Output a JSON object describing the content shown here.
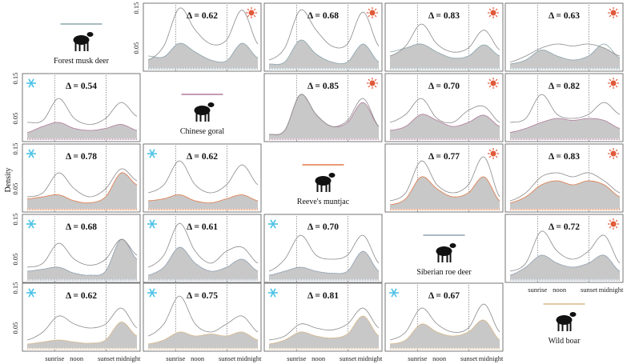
{
  "chart_data": {
    "type": "area",
    "ylabel": "Density",
    "ylim": [
      0,
      0.15
    ],
    "y_ticks": [
      0.05,
      0.15
    ],
    "y_tick_labels": [
      "0.05",
      "0.15"
    ],
    "x_ticks": [
      "sunrise",
      "noon",
      "sunset",
      "midnight"
    ],
    "species": [
      {
        "id": "musk",
        "name": "Forest musk deer",
        "icon": "musk-deer-icon",
        "line_color": "#8aa3ad"
      },
      {
        "id": "goral",
        "name": "Chinese goral",
        "icon": "goral-icon",
        "line_color": "#b07a9a"
      },
      {
        "id": "muntjac",
        "name": "Reeve's muntjac",
        "icon": "muntjac-icon",
        "line_color": "#e07a4a"
      },
      {
        "id": "roe",
        "name": "Siberian roe deer",
        "icon": "roe-deer-icon",
        "line_color": "#8f9fb1"
      },
      {
        "id": "boar",
        "name": "Wild boar",
        "icon": "boar-icon",
        "line_color": "#d9b98a"
      }
    ],
    "season_icons": {
      "sun": "sun-icon",
      "snow": "snowflake-icon"
    },
    "colors": {
      "sun": "#e05a3a",
      "snow": "#4fc3e8",
      "overlap_fill": "#c8c8c8"
    },
    "panels": [
      {
        "row": 0,
        "col": 1,
        "delta": "Δ = 0.62",
        "season": "sun",
        "a": [
          0.03,
          0.028,
          0.062,
          0.04,
          0.02,
          0.018,
          0.062,
          0.025
        ],
        "b": [
          0.02,
          0.055,
          0.15,
          0.095,
          0.06,
          0.07,
          0.145,
          0.06
        ]
      },
      {
        "row": 0,
        "col": 2,
        "delta": "Δ = 0.68",
        "season": "sun",
        "a": [
          0.01,
          0.015,
          0.07,
          0.035,
          0.015,
          0.015,
          0.06,
          0.015
        ],
        "b": [
          0.02,
          0.05,
          0.145,
          0.095,
          0.055,
          0.06,
          0.14,
          0.055
        ]
      },
      {
        "row": 0,
        "col": 3,
        "delta": "Δ = 0.83",
        "season": "sun",
        "a": [
          0.04,
          0.05,
          0.06,
          0.04,
          0.025,
          0.03,
          0.058,
          0.03
        ],
        "b": [
          0.03,
          0.055,
          0.11,
          0.06,
          0.04,
          0.05,
          0.095,
          0.045
        ]
      },
      {
        "row": 0,
        "col": 4,
        "delta": "Δ = 0.63",
        "season": "sun",
        "a": [
          0.01,
          0.02,
          0.045,
          0.03,
          0.02,
          0.03,
          0.06,
          0.025
        ],
        "b": [
          0.015,
          0.03,
          0.05,
          0.06,
          0.055,
          0.06,
          0.05,
          0.03
        ]
      },
      {
        "row": 1,
        "col": 0,
        "delta": "Δ = 0.54",
        "season": "snow",
        "a": [
          0.015,
          0.03,
          0.04,
          0.025,
          0.02,
          0.025,
          0.035,
          0.02
        ],
        "b": [
          0.04,
          0.045,
          0.1,
          0.05,
          0.035,
          0.05,
          0.09,
          0.055
        ]
      },
      {
        "row": 1,
        "col": 2,
        "delta": "Δ = 0.85",
        "season": "sun",
        "a": [
          0.01,
          0.02,
          0.11,
          0.06,
          0.03,
          0.04,
          0.09,
          0.03
        ],
        "b": [
          0.01,
          0.02,
          0.11,
          0.06,
          0.03,
          0.045,
          0.1,
          0.03
        ]
      },
      {
        "row": 1,
        "col": 3,
        "delta": "Δ = 0.70",
        "season": "sun",
        "a": [
          0.02,
          0.03,
          0.06,
          0.045,
          0.03,
          0.04,
          0.058,
          0.03
        ],
        "b": [
          0.04,
          0.06,
          0.1,
          0.05,
          0.04,
          0.07,
          0.08,
          0.04
        ]
      },
      {
        "row": 1,
        "col": 4,
        "delta": "Δ = 0.82",
        "season": "sun",
        "a": [
          0.015,
          0.025,
          0.04,
          0.05,
          0.045,
          0.05,
          0.045,
          0.025
        ],
        "b": [
          0.04,
          0.05,
          0.11,
          0.06,
          0.05,
          0.06,
          0.09,
          0.06
        ]
      },
      {
        "row": 2,
        "col": 0,
        "delta": "Δ = 0.78",
        "season": "snow",
        "a": [
          0.025,
          0.03,
          0.035,
          0.02,
          0.015,
          0.03,
          0.09,
          0.06
        ],
        "b": [
          0.03,
          0.04,
          0.09,
          0.05,
          0.03,
          0.05,
          0.1,
          0.07
        ]
      },
      {
        "row": 2,
        "col": 1,
        "delta": "Δ = 0.62",
        "season": "snow",
        "a": [
          0.02,
          0.025,
          0.035,
          0.02,
          0.015,
          0.025,
          0.035,
          0.02
        ],
        "b": [
          0.04,
          0.06,
          0.12,
          0.06,
          0.04,
          0.06,
          0.11,
          0.06
        ]
      },
      {
        "row": 2,
        "col": 3,
        "delta": "Δ = 0.77",
        "season": "sun",
        "a": [
          0.01,
          0.025,
          0.08,
          0.05,
          0.03,
          0.04,
          0.08,
          0.02
        ],
        "b": [
          0.02,
          0.04,
          0.12,
          0.06,
          0.04,
          0.06,
          0.13,
          0.03
        ]
      },
      {
        "row": 2,
        "col": 4,
        "delta": "Δ = 0.83",
        "season": "sun",
        "a": [
          0.015,
          0.03,
          0.06,
          0.07,
          0.06,
          0.07,
          0.06,
          0.03
        ],
        "b": [
          0.02,
          0.04,
          0.08,
          0.09,
          0.08,
          0.09,
          0.07,
          0.04
        ]
      },
      {
        "row": 3,
        "col": 0,
        "delta": "Δ = 0.68",
        "season": "snow",
        "a": [
          0.02,
          0.025,
          0.03,
          0.015,
          0.01,
          0.02,
          0.1,
          0.05
        ],
        "b": [
          0.03,
          0.04,
          0.09,
          0.05,
          0.035,
          0.05,
          0.1,
          0.06
        ]
      },
      {
        "row": 3,
        "col": 1,
        "delta": "Δ = 0.61",
        "season": "snow",
        "a": [
          0.01,
          0.03,
          0.08,
          0.04,
          0.02,
          0.03,
          0.05,
          0.02
        ],
        "b": [
          0.03,
          0.06,
          0.14,
          0.07,
          0.04,
          0.07,
          0.08,
          0.04
        ]
      },
      {
        "row": 3,
        "col": 2,
        "delta": "Δ = 0.70",
        "season": "snow",
        "a": [
          0.01,
          0.02,
          0.03,
          0.02,
          0.015,
          0.02,
          0.07,
          0.02
        ],
        "b": [
          0.02,
          0.05,
          0.11,
          0.06,
          0.05,
          0.06,
          0.11,
          0.04
        ]
      },
      {
        "row": 3,
        "col": 4,
        "delta": "Δ = 0.72",
        "season": "sun",
        "a": [
          0.01,
          0.03,
          0.06,
          0.04,
          0.03,
          0.04,
          0.06,
          0.02
        ],
        "b": [
          0.02,
          0.04,
          0.12,
          0.07,
          0.05,
          0.07,
          0.11,
          0.04
        ]
      },
      {
        "row": 4,
        "col": 0,
        "delta": "Δ = 0.62",
        "season": "snow",
        "a": [
          0.01,
          0.015,
          0.02,
          0.015,
          0.012,
          0.02,
          0.065,
          0.03
        ],
        "b": [
          0.02,
          0.04,
          0.08,
          0.06,
          0.05,
          0.06,
          0.1,
          0.05
        ]
      },
      {
        "row": 4,
        "col": 1,
        "delta": "Δ = 0.75",
        "season": "snow",
        "a": [
          0.01,
          0.02,
          0.04,
          0.03,
          0.035,
          0.03,
          0.04,
          0.02
        ],
        "b": [
          0.03,
          0.06,
          0.13,
          0.06,
          0.04,
          0.06,
          0.08,
          0.04
        ]
      },
      {
        "row": 4,
        "col": 2,
        "delta": "Δ = 0.81",
        "season": "snow",
        "a": [
          0.01,
          0.02,
          0.04,
          0.03,
          0.025,
          0.035,
          0.08,
          0.03
        ],
        "b": [
          0.02,
          0.03,
          0.06,
          0.05,
          0.045,
          0.06,
          0.1,
          0.05
        ]
      },
      {
        "row": 4,
        "col": 3,
        "delta": "Δ = 0.67",
        "season": "snow",
        "a": [
          0.01,
          0.02,
          0.06,
          0.04,
          0.03,
          0.04,
          0.07,
          0.02
        ],
        "b": [
          0.02,
          0.04,
          0.1,
          0.06,
          0.04,
          0.05,
          0.11,
          0.04
        ]
      }
    ]
  }
}
